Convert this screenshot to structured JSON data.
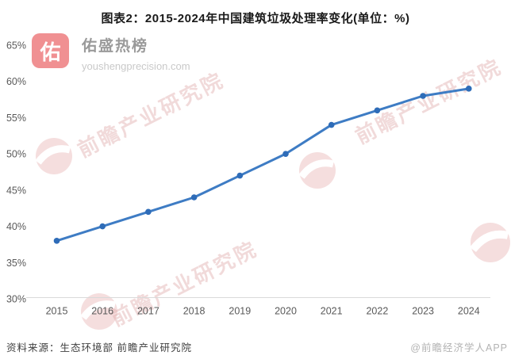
{
  "title": "图表2：2015-2024年中国建筑垃圾处理率变化(单位：%)",
  "logo": {
    "badge": "佑",
    "name": "佑盛热榜",
    "domain": "youshengprecision.com"
  },
  "watermark": {
    "text": "前瞻产业研究院"
  },
  "footer": {
    "source": "资料来源：生态环境部 前瞻产业研究院",
    "credit": "@前瞻经济学人APP"
  },
  "colors": {
    "line": "#3e7cc4",
    "marker": "#2e6cb8",
    "axis": "#d9d9d9",
    "tick_label": "#595959",
    "watermark_pink": "#eec3c3",
    "logo_pink": "#f09092"
  },
  "chart_data": {
    "type": "line",
    "title": "图表2：2015-2024年中国建筑垃圾处理率变化(单位：%)",
    "categories": [
      "2015",
      "2016",
      "2017",
      "2018",
      "2019",
      "2020",
      "2021",
      "2022",
      "2023",
      "2024"
    ],
    "values": [
      38,
      40,
      42,
      44,
      47,
      50,
      54,
      56,
      58,
      59
    ],
    "unit": "%",
    "xlabel": "",
    "ylabel": "",
    "ylim": [
      30,
      65
    ],
    "yticks": [
      30,
      35,
      40,
      45,
      50,
      55,
      60,
      65
    ],
    "ytick_suffix": "%",
    "grid": false,
    "legend": "none"
  }
}
